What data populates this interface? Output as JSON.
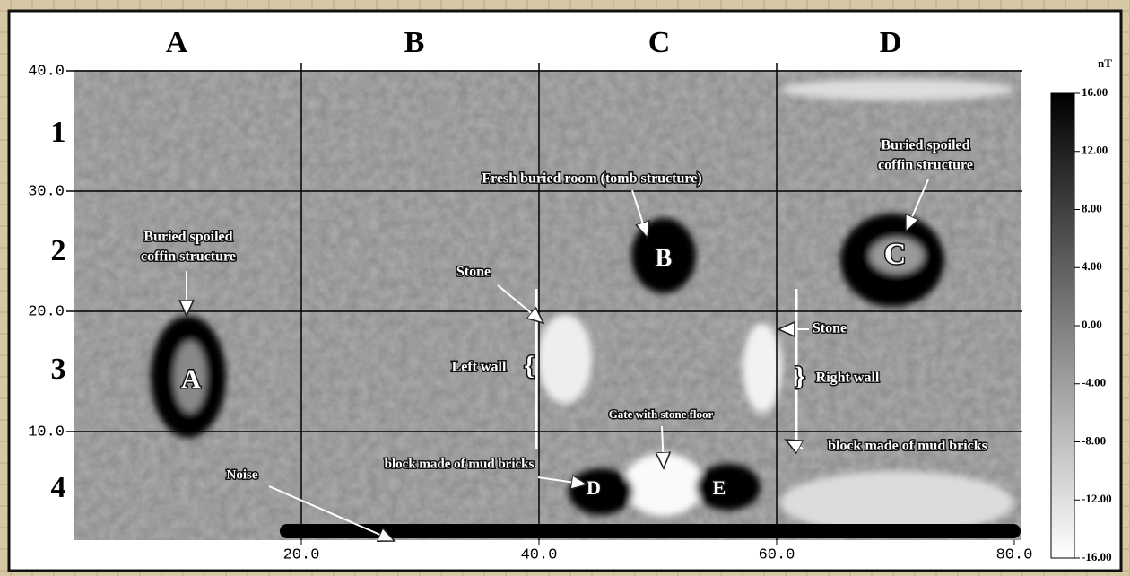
{
  "columns": [
    "A",
    "B",
    "C",
    "D"
  ],
  "rows": [
    "1",
    "2",
    "3",
    "4"
  ],
  "x_axis": {
    "xlim": [
      0,
      80
    ],
    "ticks": [
      {
        "value": 20,
        "label": "20.0"
      },
      {
        "value": 40,
        "label": "40.0"
      },
      {
        "value": 60,
        "label": "60.0"
      },
      {
        "value": 80,
        "label": "80.0"
      }
    ]
  },
  "y_axis": {
    "ylim": [
      0,
      40
    ],
    "ticks": [
      {
        "value": 10,
        "label": "10.0"
      },
      {
        "value": 20,
        "label": "20.0"
      },
      {
        "value": 30,
        "label": "30.0"
      },
      {
        "value": 40,
        "label": "40.0"
      }
    ]
  },
  "colorbar": {
    "unit": "nT",
    "range": [
      -16,
      16
    ],
    "ticks": [
      {
        "value": 16,
        "label": "16.00"
      },
      {
        "value": 12,
        "label": "12.00"
      },
      {
        "value": 8,
        "label": "8.00"
      },
      {
        "value": 4,
        "label": "4.00"
      },
      {
        "value": 0,
        "label": "0.00"
      },
      {
        "value": -4,
        "label": "-4.00"
      },
      {
        "value": -8,
        "label": "-8.00"
      },
      {
        "value": -12,
        "label": "-12.00"
      },
      {
        "value": -16,
        "label": "-16.00"
      }
    ]
  },
  "annotations": [
    {
      "lines": [
        "Buried spoiled",
        "coffin structure"
      ]
    },
    {
      "lines": [
        "A"
      ]
    },
    {
      "lines": [
        "Fresh buried room (tomb structure)"
      ]
    },
    {
      "lines": [
        "B"
      ]
    },
    {
      "lines": [
        "Buried spoiled",
        "coffin structure"
      ]
    },
    {
      "lines": [
        "C"
      ]
    },
    {
      "lines": [
        "Stone"
      ]
    },
    {
      "lines": [
        "Left wall"
      ]
    },
    {
      "lines": [
        "Stone"
      ]
    },
    {
      "lines": [
        "Right wall"
      ]
    },
    {
      "lines": [
        "Gate with stone floor"
      ]
    },
    {
      "lines": [
        "block made of mud bricks"
      ]
    },
    {
      "lines": [
        "D"
      ]
    },
    {
      "lines": [
        "block made of mud bricks"
      ]
    },
    {
      "lines": [
        "E"
      ]
    },
    {
      "lines": [
        "Noise"
      ]
    }
  ]
}
